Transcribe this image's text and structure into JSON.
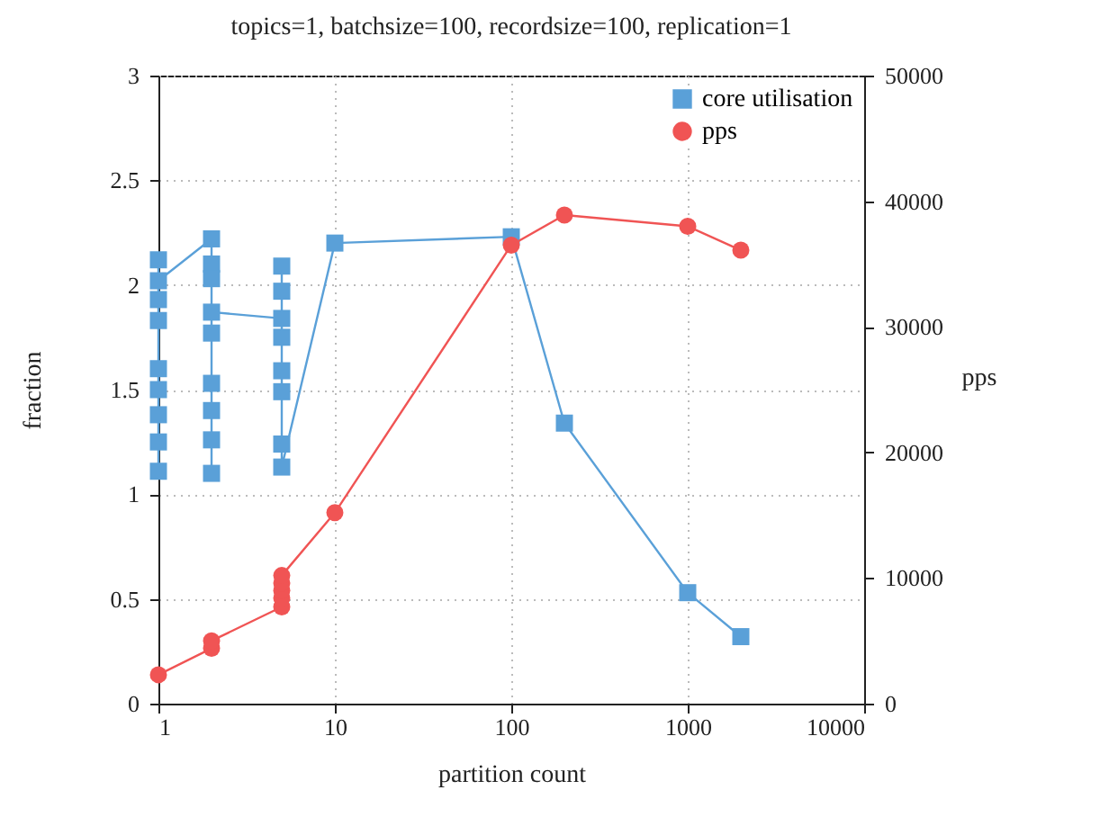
{
  "chart_data": {
    "type": "line",
    "title": "topics=1, batchsize=100, recordsize=100, replication=1",
    "xlabel": "partition count",
    "ylabel": "fraction",
    "y2label": "pps",
    "log": "x",
    "xlim": [
      1,
      10000
    ],
    "xticks": [
      1,
      10,
      100,
      1000,
      10000
    ],
    "ylim": [
      0,
      3
    ],
    "yticks": [
      0,
      0.5,
      1,
      1.5,
      2,
      2.5,
      3
    ],
    "y2lim": [
      0,
      50000
    ],
    "y2ticks": [
      0,
      10000,
      20000,
      30000,
      40000,
      50000
    ],
    "grid": true,
    "legend": "top right",
    "series": [
      {
        "name": "core utilisation",
        "color": "#5aa0d8",
        "marker": "square",
        "x": [
          1,
          1,
          1,
          1,
          1,
          1,
          1,
          1,
          1,
          2,
          2,
          2,
          2,
          2,
          2,
          2,
          2,
          2,
          5,
          5,
          5,
          5,
          5,
          5,
          5,
          5,
          10,
          100,
          200,
          1000,
          2000
        ],
        "values": [
          1.11,
          1.25,
          1.38,
          1.5,
          1.6,
          1.83,
          1.93,
          2.12,
          2.02,
          2.22,
          2.1,
          2.03,
          1.77,
          1.53,
          1.4,
          1.26,
          1.1,
          1.87,
          1.84,
          2.09,
          1.97,
          1.75,
          1.59,
          1.49,
          1.24,
          1.13,
          2.2,
          2.23,
          1.34,
          0.53,
          0.32
        ]
      },
      {
        "name": "pps",
        "color": "#f05454",
        "marker": "circle",
        "axis": "y2",
        "x": [
          1,
          2,
          2,
          5,
          5,
          5,
          5,
          5,
          10,
          100,
          200,
          1000,
          2000
        ],
        "values": [
          2300,
          4400,
          5000,
          7700,
          8400,
          9000,
          9600,
          10200,
          15200,
          36500,
          38900,
          38000,
          36100
        ]
      }
    ]
  }
}
